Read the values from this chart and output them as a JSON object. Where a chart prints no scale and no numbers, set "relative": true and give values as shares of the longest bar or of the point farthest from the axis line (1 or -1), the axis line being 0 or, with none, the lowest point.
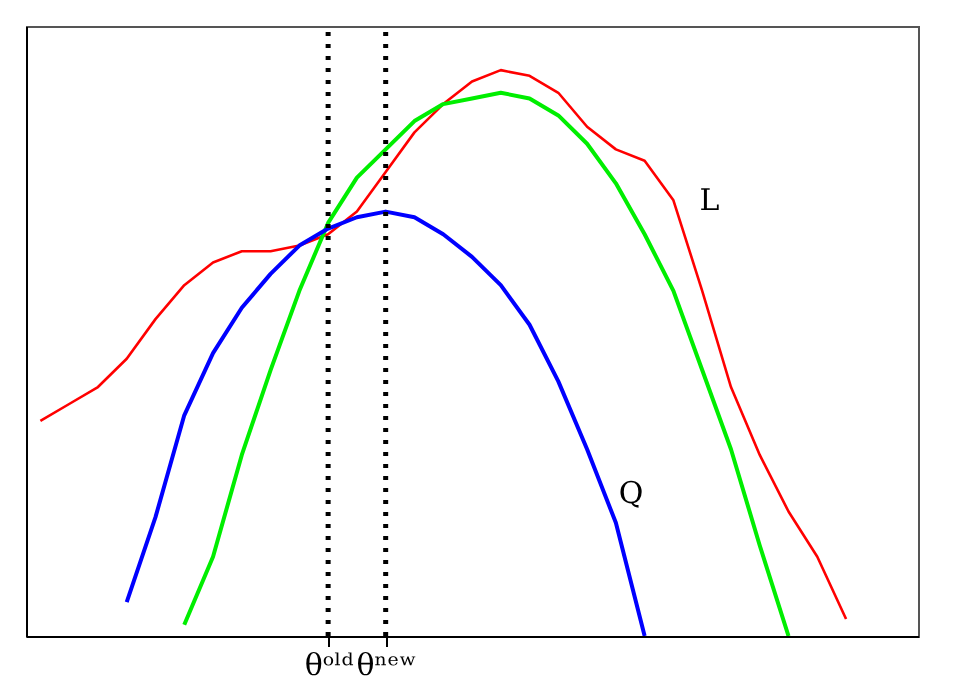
{
  "chart_data": {
    "type": "line",
    "relative": true,
    "categories": [
      null,
      null,
      null,
      null,
      null,
      null,
      null,
      null,
      null,
      null,
      "θᵒˡᵈ",
      null,
      "θⁿᵉʷ",
      null,
      null,
      null,
      null,
      null,
      null,
      null,
      null,
      null,
      null,
      null,
      null,
      null,
      null,
      null,
      null,
      null,
      null
    ],
    "marker": "none",
    "line_style": "solid",
    "grid": false,
    "ref_lines": [
      {
        "axis": "x",
        "value": "θᵒˡᵈ",
        "line_style": "dotted",
        "color": "#000000"
      },
      {
        "axis": "x",
        "value": "θⁿᵉʷ",
        "line_style": "dotted",
        "color": "#000000"
      }
    ],
    "series": [
      {
        "name": "L",
        "color": "#ff0000",
        "values": [
          0.38,
          0.41,
          0.44,
          0.49,
          0.56,
          0.62,
          0.66,
          0.68,
          0.68,
          0.69,
          0.71,
          0.75,
          0.82,
          0.89,
          0.94,
          0.98,
          1.0,
          0.99,
          0.96,
          0.9,
          0.86,
          0.84,
          0.77,
          0.61,
          0.44,
          0.32,
          0.22,
          0.14,
          0.03,
          null,
          null
        ]
      },
      {
        "color": "#00ee00",
        "values": [
          null,
          null,
          null,
          null,
          null,
          0.02,
          0.14,
          0.32,
          0.47,
          0.61,
          0.73,
          0.81,
          0.86,
          0.91,
          0.94,
          0.95,
          0.96,
          0.95,
          0.92,
          0.87,
          0.8,
          0.71,
          0.61,
          0.47,
          0.33,
          0.16,
          0,
          null,
          null,
          null,
          null
        ]
      },
      {
        "name": "Q",
        "color": "#0000ff",
        "values": [
          null,
          null,
          null,
          0.06,
          0.21,
          0.39,
          0.5,
          0.58,
          0.64,
          0.69,
          0.72,
          0.74,
          0.75,
          0.74,
          0.71,
          0.67,
          0.62,
          0.55,
          0.45,
          0.33,
          0.2,
          0,
          null,
          null,
          null,
          null,
          null,
          null,
          null,
          null,
          null
        ]
      }
    ]
  }
}
